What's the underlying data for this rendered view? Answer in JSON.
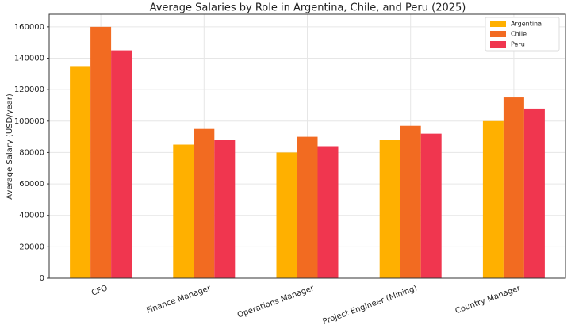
{
  "chart_data": {
    "type": "bar",
    "title": "Average Salaries by Role in Argentina, Chile, and Peru (2025)",
    "y_label": "Average Salary (USD/year)",
    "categories": [
      "CFO",
      "Finance Manager",
      "Operations Manager",
      "Project Engineer (Mining)",
      "Country Manager"
    ],
    "series": [
      {
        "name": "Argentina",
        "color": "#ffb000",
        "values": [
          135000,
          85000,
          80000,
          88000,
          100000
        ]
      },
      {
        "name": "Chile",
        "color": "#f26b21",
        "values": [
          160000,
          95000,
          90000,
          97000,
          115000
        ]
      },
      {
        "name": "Peru",
        "color": "#f0364f",
        "values": [
          145000,
          88000,
          84000,
          92000,
          108000
        ]
      }
    ],
    "ylim": [
      0,
      168000
    ],
    "yticks": [
      0,
      20000,
      40000,
      60000,
      80000,
      100000,
      120000,
      140000,
      160000
    ],
    "grid": true,
    "legend": "upper right"
  }
}
